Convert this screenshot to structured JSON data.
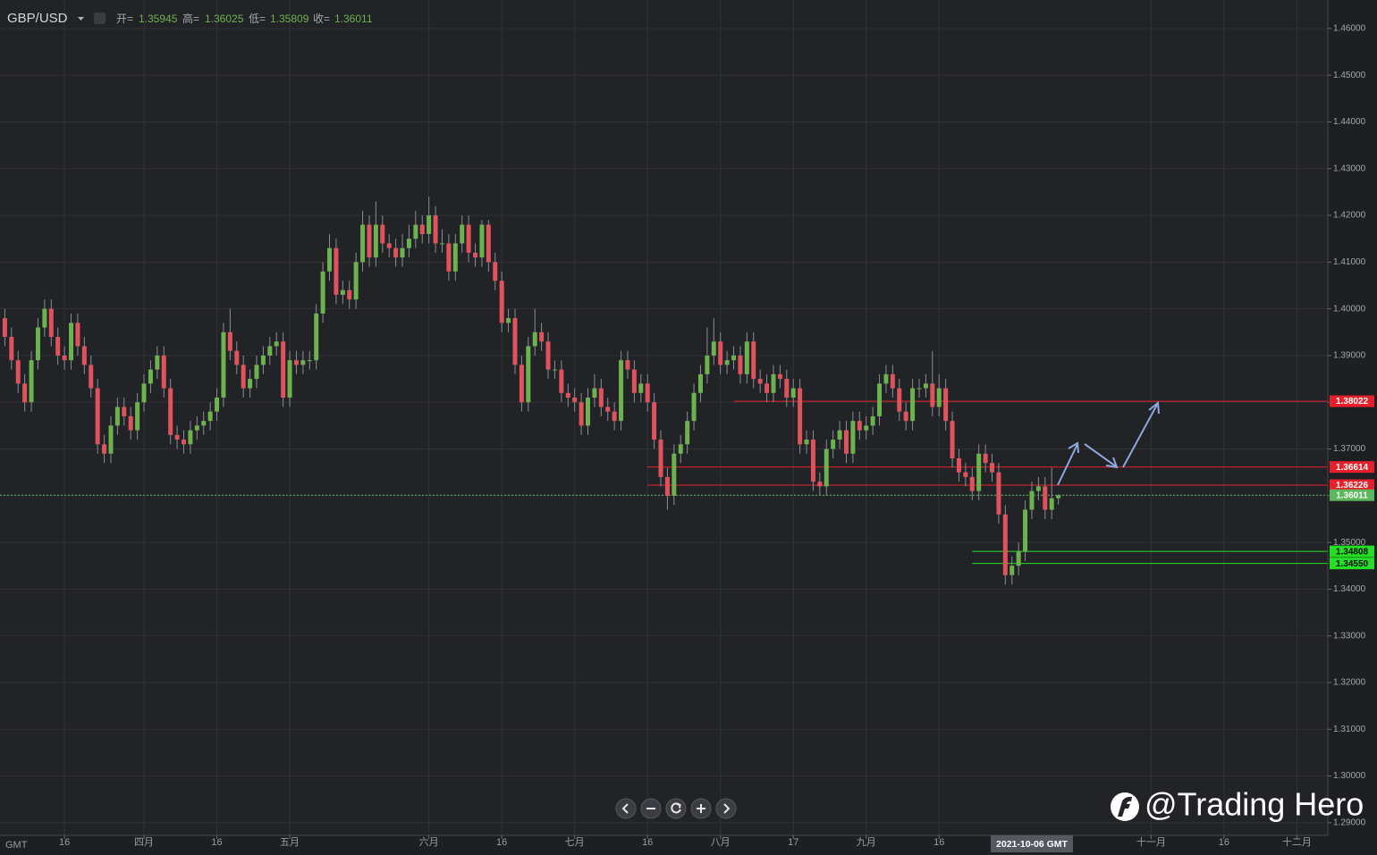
{
  "chart_data": {
    "type": "candlestick",
    "title": "GBP/USD",
    "header_labels": [
      "开=",
      "高=",
      "低=",
      "收="
    ],
    "time_zone": "GMT",
    "crosshair_label": "2021-10-06 GMT",
    "watermark": "@Trading Hero",
    "up_color": "#6cb24f",
    "down_color": "#e0535d",
    "grid": true,
    "x": [
      "2021-03-03",
      "2021-03-04",
      "2021-03-05",
      "2021-03-08",
      "2021-03-09",
      "2021-03-10",
      "2021-03-11",
      "2021-03-12",
      "2021-03-15",
      "2021-03-16",
      "2021-03-17",
      "2021-03-18",
      "2021-03-19",
      "2021-03-22",
      "2021-03-23",
      "2021-03-24",
      "2021-03-25",
      "2021-03-26",
      "2021-03-29",
      "2021-03-30",
      "2021-03-31",
      "2021-04-01",
      "2021-04-02",
      "2021-04-05",
      "2021-04-06",
      "2021-04-07",
      "2021-04-08",
      "2021-04-09",
      "2021-04-12",
      "2021-04-13",
      "2021-04-14",
      "2021-04-15",
      "2021-04-16",
      "2021-04-19",
      "2021-04-20",
      "2021-04-21",
      "2021-04-22",
      "2021-04-23",
      "2021-04-26",
      "2021-04-27",
      "2021-04-28",
      "2021-04-29",
      "2021-04-30",
      "2021-05-03",
      "2021-05-04",
      "2021-05-05",
      "2021-05-06",
      "2021-05-07",
      "2021-05-10",
      "2021-05-11",
      "2021-05-12",
      "2021-05-13",
      "2021-05-14",
      "2021-05-17",
      "2021-05-18",
      "2021-05-19",
      "2021-05-20",
      "2021-05-21",
      "2021-05-24",
      "2021-05-25",
      "2021-05-26",
      "2021-05-27",
      "2021-05-28",
      "2021-05-31",
      "2021-06-01",
      "2021-06-02",
      "2021-06-03",
      "2021-06-04",
      "2021-06-07",
      "2021-06-08",
      "2021-06-09",
      "2021-06-10",
      "2021-06-11",
      "2021-06-14",
      "2021-06-15",
      "2021-06-16",
      "2021-06-17",
      "2021-06-18",
      "2021-06-21",
      "2021-06-22",
      "2021-06-23",
      "2021-06-24",
      "2021-06-25",
      "2021-06-28",
      "2021-06-29",
      "2021-06-30",
      "2021-07-01",
      "2021-07-02",
      "2021-07-05",
      "2021-07-06",
      "2021-07-07",
      "2021-07-08",
      "2021-07-09",
      "2021-07-12",
      "2021-07-13",
      "2021-07-14",
      "2021-07-15",
      "2021-07-16",
      "2021-07-19",
      "2021-07-20",
      "2021-07-21",
      "2021-07-22",
      "2021-07-23",
      "2021-07-26",
      "2021-07-27",
      "2021-07-28",
      "2021-07-29",
      "2021-07-30",
      "2021-08-02",
      "2021-08-03",
      "2021-08-04",
      "2021-08-05",
      "2021-08-06",
      "2021-08-09",
      "2021-08-10",
      "2021-08-11",
      "2021-08-12",
      "2021-08-13",
      "2021-08-16",
      "2021-08-17",
      "2021-08-18",
      "2021-08-19",
      "2021-08-20",
      "2021-08-23",
      "2021-08-24",
      "2021-08-25",
      "2021-08-26",
      "2021-08-27",
      "2021-08-30",
      "2021-08-31",
      "2021-09-01",
      "2021-09-02",
      "2021-09-03",
      "2021-09-06",
      "2021-09-07",
      "2021-09-08",
      "2021-09-09",
      "2021-09-10",
      "2021-09-13",
      "2021-09-14",
      "2021-09-15",
      "2021-09-16",
      "2021-09-17",
      "2021-09-20",
      "2021-09-21",
      "2021-09-22",
      "2021-09-23",
      "2021-09-24",
      "2021-09-27",
      "2021-09-28",
      "2021-09-29",
      "2021-09-30",
      "2021-10-01",
      "2021-10-04",
      "2021-10-05",
      "2021-10-06",
      "2021-10-07",
      "2021-10-08",
      "2021-10-11",
      "2021-10-12"
    ],
    "open": [
      1.398,
      1.394,
      1.389,
      1.384,
      1.38,
      1.389,
      1.396,
      1.4,
      1.394,
      1.39,
      1.389,
      1.397,
      1.392,
      1.388,
      1.383,
      1.371,
      1.369,
      1.375,
      1.379,
      1.377,
      1.374,
      1.38,
      1.384,
      1.387,
      1.39,
      1.383,
      1.373,
      1.372,
      1.371,
      1.374,
      1.375,
      1.376,
      1.378,
      1.381,
      1.395,
      1.391,
      1.388,
      1.383,
      1.385,
      1.388,
      1.39,
      1.392,
      1.393,
      1.381,
      1.389,
      1.388,
      1.389,
      1.389,
      1.399,
      1.408,
      1.413,
      1.403,
      1.404,
      1.402,
      1.41,
      1.418,
      1.411,
      1.418,
      1.414,
      1.413,
      1.411,
      1.413,
      1.415,
      1.418,
      1.416,
      1.42,
      1.414,
      1.414,
      1.408,
      1.414,
      1.418,
      1.412,
      1.411,
      1.418,
      1.41,
      1.406,
      1.397,
      1.398,
      1.388,
      1.38,
      1.392,
      1.395,
      1.393,
      1.387,
      1.387,
      1.382,
      1.381,
      1.38,
      1.375,
      1.381,
      1.383,
      1.379,
      1.378,
      1.376,
      1.389,
      1.387,
      1.382,
      1.384,
      1.38,
      1.372,
      1.364,
      1.36,
      1.369,
      1.371,
      1.376,
      1.382,
      1.386,
      1.39,
      1.393,
      1.388,
      1.389,
      1.39,
      1.386,
      1.393,
      1.385,
      1.384,
      1.382,
      1.386,
      1.385,
      1.381,
      1.383,
      1.371,
      1.372,
      1.363,
      1.362,
      1.37,
      1.372,
      1.374,
      1.369,
      1.376,
      1.374,
      1.375,
      1.377,
      1.384,
      1.386,
      1.383,
      1.378,
      1.376,
      1.383,
      1.383,
      1.384,
      1.379,
      1.383,
      1.376,
      1.368,
      1.365,
      1.364,
      1.361,
      1.369,
      1.367,
      1.365,
      1.356,
      1.343,
      1.345,
      1.348,
      1.357,
      1.361,
      1.362,
      1.357,
      1.35945
    ],
    "high": [
      1.4,
      1.396,
      1.391,
      1.386,
      1.391,
      1.398,
      1.402,
      1.402,
      1.396,
      1.392,
      1.399,
      1.399,
      1.394,
      1.39,
      1.385,
      1.373,
      1.377,
      1.381,
      1.381,
      1.379,
      1.382,
      1.386,
      1.389,
      1.392,
      1.392,
      1.385,
      1.375,
      1.374,
      1.376,
      1.377,
      1.378,
      1.38,
      1.383,
      1.397,
      1.4,
      1.393,
      1.39,
      1.387,
      1.39,
      1.392,
      1.394,
      1.395,
      1.395,
      1.391,
      1.391,
      1.391,
      1.391,
      1.401,
      1.41,
      1.416,
      1.415,
      1.406,
      1.406,
      1.412,
      1.421,
      1.42,
      1.423,
      1.42,
      1.416,
      1.415,
      1.416,
      1.418,
      1.421,
      1.42,
      1.424,
      1.422,
      1.417,
      1.416,
      1.416,
      1.42,
      1.42,
      1.414,
      1.419,
      1.419,
      1.412,
      1.408,
      1.4,
      1.4,
      1.39,
      1.394,
      1.4,
      1.397,
      1.395,
      1.389,
      1.389,
      1.384,
      1.383,
      1.382,
      1.383,
      1.386,
      1.385,
      1.381,
      1.38,
      1.391,
      1.391,
      1.389,
      1.386,
      1.386,
      1.382,
      1.374,
      1.366,
      1.371,
      1.373,
      1.378,
      1.384,
      1.388,
      1.396,
      1.398,
      1.395,
      1.391,
      1.392,
      1.392,
      1.395,
      1.395,
      1.387,
      1.386,
      1.388,
      1.388,
      1.387,
      1.385,
      1.385,
      1.374,
      1.374,
      1.365,
      1.372,
      1.374,
      1.376,
      1.376,
      1.378,
      1.378,
      1.377,
      1.379,
      1.386,
      1.388,
      1.388,
      1.385,
      1.38,
      1.385,
      1.385,
      1.386,
      1.391,
      1.386,
      1.385,
      1.378,
      1.37,
      1.367,
      1.366,
      1.371,
      1.371,
      1.369,
      1.367,
      1.358,
      1.347,
      1.35,
      1.359,
      1.363,
      1.364,
      1.364,
      1.366,
      1.36025
    ],
    "low": [
      1.392,
      1.387,
      1.382,
      1.378,
      1.378,
      1.387,
      1.394,
      1.392,
      1.388,
      1.387,
      1.387,
      1.39,
      1.386,
      1.381,
      1.369,
      1.367,
      1.367,
      1.373,
      1.375,
      1.372,
      1.372,
      1.378,
      1.382,
      1.385,
      1.381,
      1.371,
      1.37,
      1.369,
      1.369,
      1.372,
      1.373,
      1.374,
      1.376,
      1.379,
      1.389,
      1.386,
      1.381,
      1.381,
      1.383,
      1.386,
      1.388,
      1.39,
      1.379,
      1.379,
      1.386,
      1.386,
      1.387,
      1.387,
      1.397,
      1.406,
      1.401,
      1.401,
      1.4,
      1.4,
      1.408,
      1.409,
      1.409,
      1.412,
      1.411,
      1.409,
      1.409,
      1.411,
      1.413,
      1.414,
      1.414,
      1.412,
      1.412,
      1.406,
      1.406,
      1.412,
      1.41,
      1.409,
      1.409,
      1.408,
      1.404,
      1.395,
      1.395,
      1.386,
      1.378,
      1.378,
      1.39,
      1.391,
      1.385,
      1.385,
      1.38,
      1.379,
      1.378,
      1.373,
      1.373,
      1.379,
      1.377,
      1.376,
      1.374,
      1.374,
      1.385,
      1.38,
      1.38,
      1.378,
      1.37,
      1.362,
      1.357,
      1.358,
      1.367,
      1.369,
      1.374,
      1.38,
      1.384,
      1.388,
      1.386,
      1.386,
      1.387,
      1.384,
      1.384,
      1.383,
      1.382,
      1.38,
      1.38,
      1.383,
      1.379,
      1.379,
      1.369,
      1.369,
      1.361,
      1.36,
      1.36,
      1.368,
      1.37,
      1.367,
      1.367,
      1.372,
      1.372,
      1.373,
      1.375,
      1.382,
      1.381,
      1.376,
      1.374,
      1.374,
      1.381,
      1.381,
      1.377,
      1.377,
      1.374,
      1.366,
      1.363,
      1.362,
      1.359,
      1.359,
      1.365,
      1.363,
      1.354,
      1.341,
      1.341,
      1.343,
      1.346,
      1.355,
      1.359,
      1.355,
      1.355,
      1.35809
    ],
    "close": [
      1.394,
      1.389,
      1.384,
      1.38,
      1.389,
      1.396,
      1.4,
      1.394,
      1.39,
      1.389,
      1.397,
      1.392,
      1.388,
      1.383,
      1.371,
      1.369,
      1.375,
      1.379,
      1.377,
      1.374,
      1.38,
      1.384,
      1.387,
      1.39,
      1.383,
      1.373,
      1.372,
      1.371,
      1.374,
      1.375,
      1.376,
      1.378,
      1.381,
      1.395,
      1.391,
      1.388,
      1.383,
      1.385,
      1.388,
      1.39,
      1.392,
      1.393,
      1.381,
      1.389,
      1.388,
      1.389,
      1.389,
      1.399,
      1.408,
      1.413,
      1.403,
      1.404,
      1.402,
      1.41,
      1.418,
      1.411,
      1.418,
      1.414,
      1.413,
      1.411,
      1.413,
      1.415,
      1.418,
      1.416,
      1.42,
      1.414,
      1.414,
      1.408,
      1.414,
      1.418,
      1.412,
      1.411,
      1.418,
      1.41,
      1.406,
      1.397,
      1.398,
      1.388,
      1.38,
      1.392,
      1.395,
      1.393,
      1.387,
      1.387,
      1.382,
      1.381,
      1.38,
      1.375,
      1.381,
      1.383,
      1.379,
      1.378,
      1.376,
      1.389,
      1.387,
      1.382,
      1.384,
      1.38,
      1.372,
      1.364,
      1.36,
      1.369,
      1.371,
      1.376,
      1.382,
      1.386,
      1.39,
      1.393,
      1.388,
      1.389,
      1.39,
      1.386,
      1.393,
      1.385,
      1.384,
      1.382,
      1.386,
      1.385,
      1.381,
      1.383,
      1.371,
      1.372,
      1.363,
      1.362,
      1.37,
      1.372,
      1.374,
      1.369,
      1.376,
      1.374,
      1.375,
      1.377,
      1.384,
      1.386,
      1.383,
      1.378,
      1.376,
      1.383,
      1.383,
      1.384,
      1.379,
      1.383,
      1.376,
      1.368,
      1.365,
      1.364,
      1.361,
      1.369,
      1.367,
      1.365,
      1.356,
      1.343,
      1.345,
      1.348,
      1.357,
      1.361,
      1.362,
      1.357,
      1.35945,
      1.36011
    ],
    "levels": [
      {
        "value": 1.38022,
        "color": "#e8202c",
        "text_color": "#ffffff",
        "from": "2021-08-04"
      },
      {
        "value": 1.36614,
        "color": "#e8202c",
        "text_color": "#ffffff",
        "from": "2021-07-16"
      },
      {
        "value": 1.36226,
        "color": "#e8202c",
        "text_color": "#ffffff",
        "from": "2021-07-16"
      },
      {
        "value": 1.36011,
        "color": "#5cb85c",
        "text_color": "#ffffff",
        "from": "2021-03-01",
        "dashed": true
      },
      {
        "value": 1.34808,
        "color": "#22e022",
        "text_color": "#000000",
        "from": "2021-09-23"
      },
      {
        "value": 1.3455,
        "label": "1.34550",
        "color": "#22e022",
        "text_color": "#000000",
        "from": "2021-09-23"
      }
    ],
    "xlim": [
      "2021-03-01",
      "2021-12-06"
    ],
    "xticks": [
      {
        "value": "2021-03-16",
        "label": "16"
      },
      {
        "value": "2021-04-01",
        "label": "四月"
      },
      {
        "value": "2021-04-16",
        "label": "16"
      },
      {
        "value": "2021-05-03",
        "label": "五月"
      },
      {
        "value": "2021-06-01",
        "label": "六月"
      },
      {
        "value": "2021-06-16",
        "label": "16"
      },
      {
        "value": "2021-07-01",
        "label": "七月"
      },
      {
        "value": "2021-07-16",
        "label": "16"
      },
      {
        "value": "2021-08-02",
        "label": "八月"
      },
      {
        "value": "2021-08-17",
        "label": "17"
      },
      {
        "value": "2021-09-01",
        "label": "九月"
      },
      {
        "value": "2021-09-16",
        "label": "16"
      },
      {
        "value": "2021-11-01",
        "label": "十一月"
      },
      {
        "value": "2021-11-16",
        "label": "16"
      },
      {
        "value": "2021-12-01",
        "label": "十二月"
      }
    ],
    "ylim": [
      1.2873,
      1.4661
    ],
    "yticks": [
      {
        "value": 1.46,
        "label": "1.46000"
      },
      {
        "value": 1.45,
        "label": "1.45000"
      },
      {
        "value": 1.44,
        "label": "1.44000"
      },
      {
        "value": 1.43,
        "label": "1.43000"
      },
      {
        "value": 1.42,
        "label": "1.42000"
      },
      {
        "value": 1.41,
        "label": "1.41000"
      },
      {
        "value": 1.4,
        "label": "1.40000"
      },
      {
        "value": 1.39,
        "label": "1.39000"
      },
      {
        "value": 1.38,
        "label": "1.38000"
      },
      {
        "value": 1.37,
        "label": "1.37000"
      },
      {
        "value": 1.36,
        "label": "1.36000"
      },
      {
        "value": 1.35,
        "label": "1.35000"
      },
      {
        "value": 1.34,
        "label": "1.34000"
      },
      {
        "value": 1.33,
        "label": "1.33000"
      },
      {
        "value": 1.32,
        "label": "1.32000"
      },
      {
        "value": 1.31,
        "label": "1.31000"
      },
      {
        "value": 1.3,
        "label": "1.30000"
      },
      {
        "value": 1.29,
        "label": "1.29000"
      }
    ]
  }
}
